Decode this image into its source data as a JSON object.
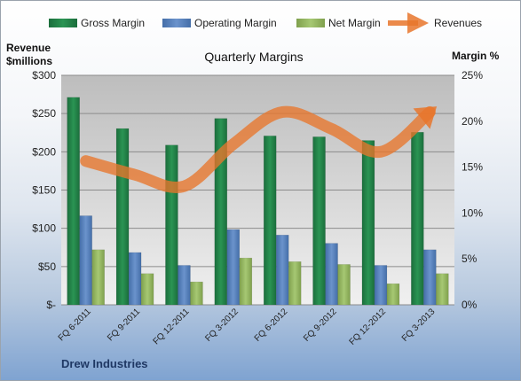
{
  "chart_data": {
    "type": "bar",
    "title": "Quarterly Margins",
    "y_left_label_line1": "Revenue",
    "y_left_label_line2": "$millions",
    "y_right_label": "Margin %",
    "company": "Drew Industries",
    "categories": [
      "FQ 6-2011",
      "FQ 9-2011",
      "FQ 12-2011",
      "FQ 3-2012",
      "FQ 6-2012",
      "FQ 9-2012",
      "FQ 12-2012",
      "FQ 3-2013"
    ],
    "ylim_left": [
      0,
      300
    ],
    "ylim_right": [
      0,
      25
    ],
    "left_ticks": [
      "$-",
      "$50",
      "$100",
      "$150",
      "$200",
      "$250",
      "$300"
    ],
    "right_ticks": [
      "0%",
      "5%",
      "10%",
      "15%",
      "20%",
      "25%"
    ],
    "legend": [
      "Gross Margin",
      "Operating Margin",
      "Net Margin",
      "Revenues"
    ],
    "series": [
      {
        "name": "Gross Margin",
        "axis": "right",
        "color": "#1e7a43",
        "values": [
          22.6,
          19.2,
          17.4,
          20.3,
          18.4,
          18.3,
          17.9,
          18.8
        ]
      },
      {
        "name": "Operating Margin",
        "axis": "right",
        "color": "#4f7bbd",
        "values": [
          9.7,
          5.7,
          4.3,
          8.2,
          7.6,
          6.7,
          4.3,
          6.0
        ]
      },
      {
        "name": "Net Margin",
        "axis": "right",
        "color": "#8fb35c",
        "values": [
          6.0,
          3.4,
          2.5,
          5.1,
          4.7,
          4.4,
          2.3,
          3.4
        ]
      },
      {
        "name": "Revenues",
        "axis": "left",
        "color": "#e8762c",
        "type": "line",
        "values": [
          188,
          170,
          155,
          210,
          252,
          230,
          200,
          252
        ]
      }
    ]
  }
}
